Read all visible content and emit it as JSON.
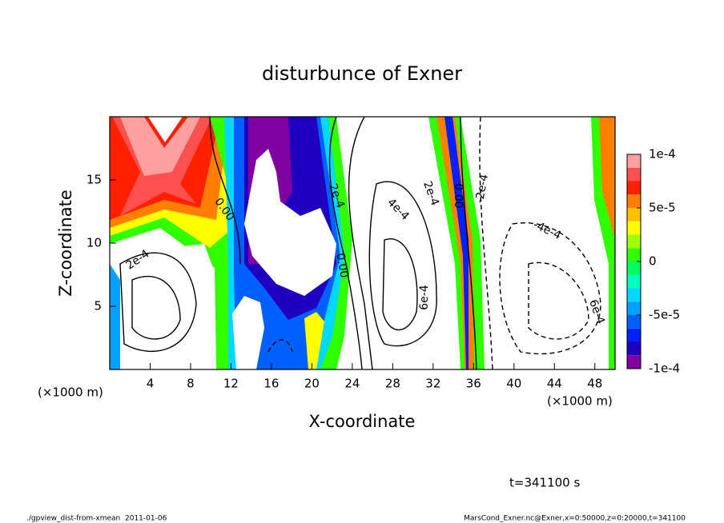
{
  "chart_data": {
    "type": "contour",
    "title": "disturbunce of Exner",
    "xlabel": "X-coordinate",
    "ylabel": "Z-coordinate",
    "x_unit": "(×1000 m)",
    "xlim": [
      0,
      50
    ],
    "xticks": [
      4,
      8,
      12,
      16,
      20,
      24,
      28,
      32,
      36,
      40,
      44,
      48
    ],
    "ylim": [
      0,
      20
    ],
    "yticks": [
      5,
      10,
      15
    ],
    "clim": [
      -0.0001,
      0.0001
    ],
    "cticks": [
      {
        "value": -0.0001,
        "label": "-1e-4"
      },
      {
        "value": -5e-05,
        "label": "-5e-5"
      },
      0,
      {
        "value": 5e-05,
        "label": "5e-5"
      },
      {
        "value": 0.0001,
        "label": "1e-4"
      }
    ],
    "colors": [
      "#8000a0",
      "#2000c0",
      "#0020ff",
      "#0060ff",
      "#00a0ff",
      "#00d8ff",
      "#00ffc0",
      "#00ff60",
      "#30ff00",
      "#a0ff00",
      "#ffff00",
      "#ffc000",
      "#ff8000",
      "#ff2000",
      "#ff5050",
      "#ffa0a0"
    ],
    "contour_labels": [
      "2e-4",
      "0.00",
      "0.00",
      "2e-4",
      "4e-4",
      "2e-4",
      "0.00",
      "-2e-4",
      "-4e-4",
      "6e-4",
      "6e-4"
    ],
    "time_label": "t=341100 s",
    "footer_left": "./gpview_dist-from-xmean  2011-01-06",
    "footer_right": "MarsCond_Exner.nc@Exner,x=0:50000,z=0:20000,t=341100"
  }
}
